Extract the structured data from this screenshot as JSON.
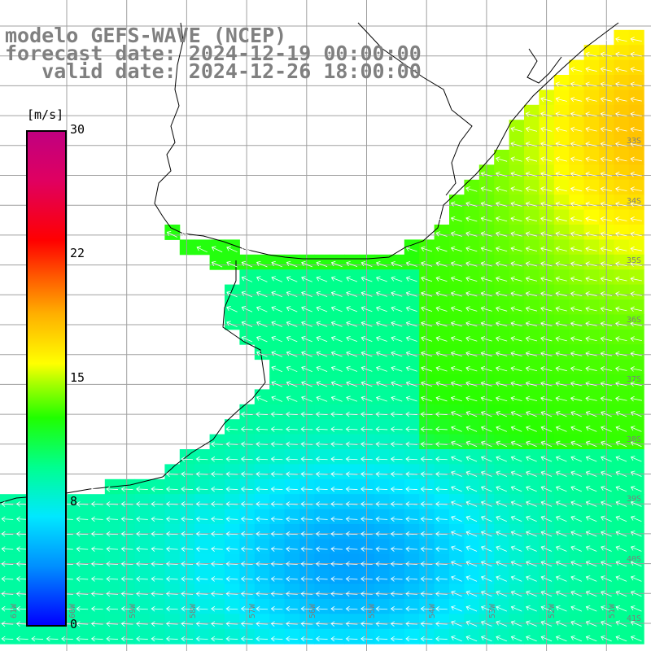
{
  "titles": {
    "model": "modelo GEFS-WAVE (NCEP)",
    "forecast": "forecast date: 2024-12-19 00:00:00",
    "valid": "   valid date: 2024-12-26 18:00:00"
  },
  "colorbar": {
    "unit": "[m/s]",
    "ticks": [
      "30",
      "22",
      "15",
      "8",
      "0"
    ]
  },
  "lat_labels": [
    "33S",
    "34S",
    "35S",
    "36S",
    "37S",
    "38S",
    "39S",
    "40S",
    "41S"
  ],
  "lon_labels": [
    "61W",
    "60W",
    "59W",
    "58W",
    "57W",
    "56W",
    "55W",
    "54W",
    "53W",
    "52W",
    "51W"
  ],
  "colors": {
    "grid": "#a0a0a0",
    "coast": "#000000",
    "arrows": "#ffffff",
    "title": "#808080"
  }
}
